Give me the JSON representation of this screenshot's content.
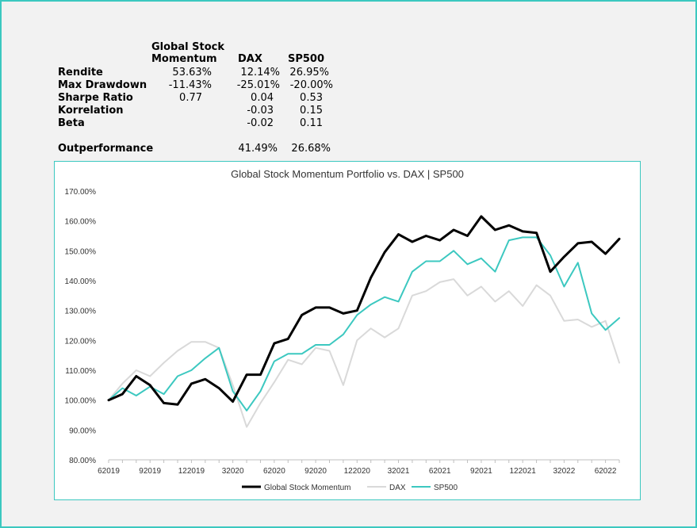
{
  "stats_table": {
    "col_headers": {
      "gsm_line1": "Global Stock",
      "gsm_line2": "Momentum",
      "dax": "DAX",
      "sp500": "SP500"
    },
    "rows": [
      {
        "label": "Rendite",
        "gsm": "53.63%",
        "dax": "12.14%",
        "sp500": "26.95%"
      },
      {
        "label": "Max Drawdown",
        "gsm": "-11.43%",
        "dax": "-25.01%",
        "sp500": "-20.00%"
      },
      {
        "label": "Sharpe Ratio",
        "gsm": "0.77",
        "dax": "0.04",
        "sp500": "0.53"
      },
      {
        "label": "Korrelation",
        "gsm": "",
        "dax": "-0.03",
        "sp500": "0.15"
      },
      {
        "label": "Beta",
        "gsm": "",
        "dax": "-0.02",
        "sp500": "0.11"
      }
    ],
    "outperformance": {
      "label": "Outperformance",
      "dax": "41.49%",
      "sp500": "26.68%"
    }
  },
  "colors": {
    "border": "#3cc8c0",
    "gsm": "#000000",
    "dax": "#d9d9d9",
    "sp500": "#3cc8c0"
  },
  "chart_data": {
    "type": "line",
    "title": "Global Stock Momentum Portfolio vs. DAX | SP500",
    "xlabel": "",
    "ylabel": "",
    "ylim": [
      80,
      170
    ],
    "y_ticks": [
      "80.00%",
      "90.00%",
      "100.00%",
      "110.00%",
      "120.00%",
      "130.00%",
      "140.00%",
      "150.00%",
      "160.00%",
      "170.00%"
    ],
    "x_tick_labels": [
      {
        "index": 0,
        "label": "62019"
      },
      {
        "index": 3,
        "label": "92019"
      },
      {
        "index": 6,
        "label": "122019"
      },
      {
        "index": 9,
        "label": "32020"
      },
      {
        "index": 12,
        "label": "62020"
      },
      {
        "index": 15,
        "label": "92020"
      },
      {
        "index": 18,
        "label": "122020"
      },
      {
        "index": 21,
        "label": "32021"
      },
      {
        "index": 24,
        "label": "62021"
      },
      {
        "index": 27,
        "label": "92021"
      },
      {
        "index": 30,
        "label": "122021"
      },
      {
        "index": 33,
        "label": "32022"
      },
      {
        "index": 36,
        "label": "62022"
      }
    ],
    "grid": false,
    "legend": "bottom",
    "series": [
      {
        "name": "Global Stock Momentum",
        "color": "#000000",
        "values": [
          100,
          102,
          108,
          105,
          99,
          98.5,
          105.5,
          107,
          104,
          99.5,
          108.5,
          108.5,
          119,
          120.5,
          128.5,
          131,
          131,
          129,
          130,
          141,
          149.5,
          155.5,
          153,
          155,
          153.5,
          157,
          155,
          161.5,
          157,
          158.5,
          156.5,
          156,
          143,
          148,
          152.5,
          153,
          149,
          154
        ]
      },
      {
        "name": "DAX",
        "color": "#d9d9d9",
        "values": [
          100,
          105.5,
          110,
          108,
          112.5,
          116.5,
          119.5,
          119.5,
          117.5,
          105,
          91,
          99,
          106,
          113.5,
          112,
          117.5,
          116.5,
          105,
          120,
          124,
          121,
          124,
          135,
          136.5,
          139.5,
          140.5,
          135,
          138,
          133,
          136.5,
          131.5,
          138.5,
          135,
          126.5,
          127,
          124.5,
          126.5,
          112.5
        ]
      },
      {
        "name": "SP500",
        "color": "#3cc8c0",
        "values": [
          100,
          104,
          101.5,
          104.5,
          102,
          108,
          110,
          114,
          117.5,
          103,
          96.5,
          103,
          113,
          115.5,
          115.5,
          118.5,
          118.5,
          122,
          128.5,
          132,
          134.5,
          133,
          143,
          146.5,
          146.5,
          150,
          145.5,
          147.5,
          143,
          153.5,
          154.5,
          154.5,
          148.5,
          138,
          146,
          129,
          123.5,
          127.5
        ]
      }
    ]
  }
}
